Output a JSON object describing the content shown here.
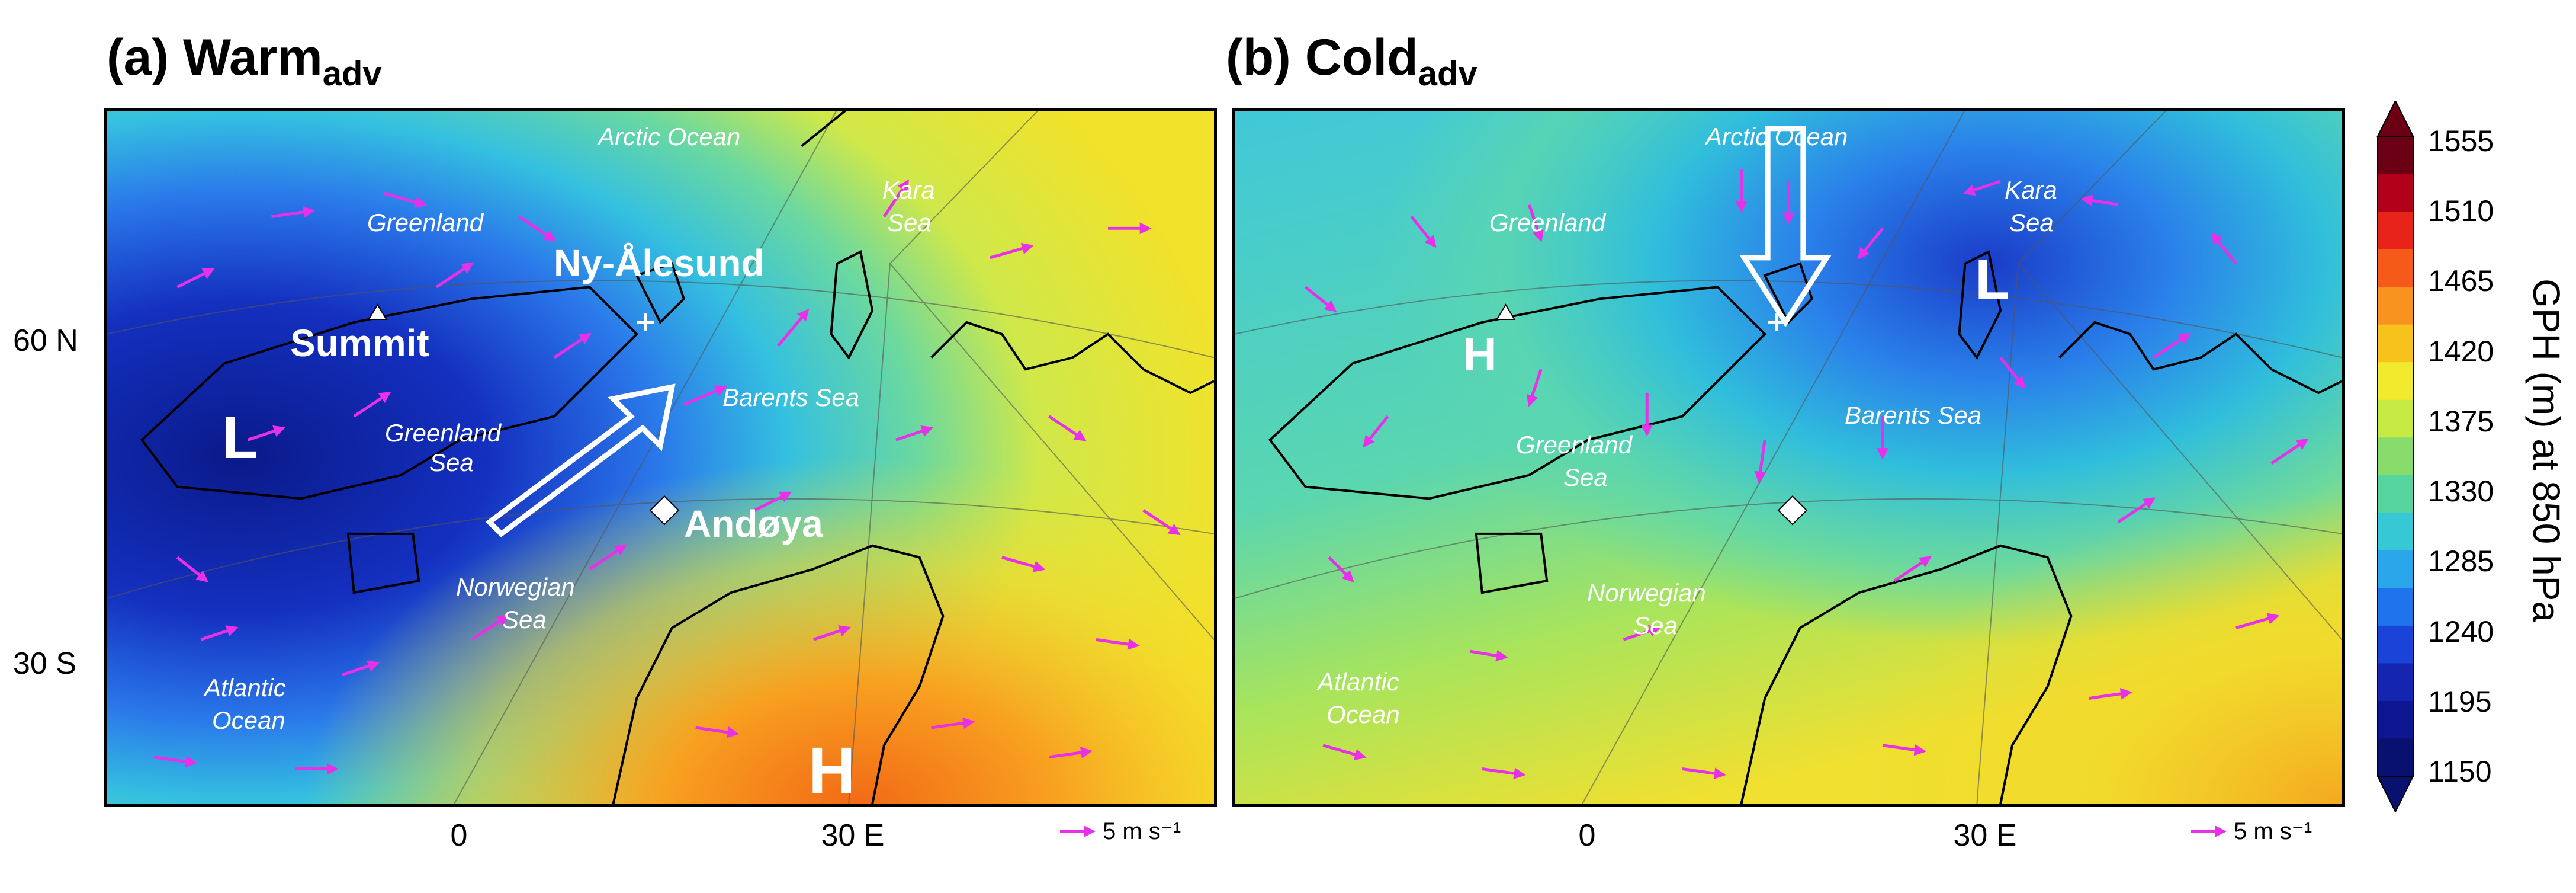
{
  "panel_a": {
    "title": "(a) Warm",
    "subscript": "adv",
    "place_labels": [
      "Arctic Ocean",
      "Greenland",
      "Greenland",
      "Sea",
      "Kara",
      "Sea",
      "Barents Sea",
      "Norwegian",
      "Sea",
      "Atlantic",
      "Ocean"
    ],
    "highlight_labels": [
      "Ny-Ålesund",
      "Summit",
      "Andøya"
    ],
    "pressure_centers": [
      "L",
      "H"
    ]
  },
  "panel_b": {
    "title": "(b) Cold",
    "subscript": "adv",
    "place_labels": [
      "Arctic Ocean",
      "Greenland",
      "Greenland",
      "Sea",
      "Kara",
      "Sea",
      "Barents Sea",
      "Norwegian",
      "Sea",
      "Atlantic",
      "Ocean"
    ],
    "pressure_centers": [
      "H",
      "L"
    ]
  },
  "axes": {
    "lat_labels": [
      "60 N",
      "30 S"
    ],
    "lon_labels_a": [
      "0",
      "30 E"
    ],
    "lon_labels_b": [
      "0",
      "30 E"
    ],
    "wind_reference": "5 m s⁻¹"
  },
  "colorbar": {
    "label": "GPH (m) at 850 hPa",
    "ticks": [
      "1555",
      "1510",
      "1465",
      "1420",
      "1375",
      "1330",
      "1285",
      "1240",
      "1195",
      "1150"
    ],
    "colors": [
      "#6b0015",
      "#b3001a",
      "#e8241a",
      "#f55a1a",
      "#f7931e",
      "#f8c21c",
      "#f2ea2c",
      "#c6ea42",
      "#88dc6c",
      "#55d4a0",
      "#36c8d4",
      "#2aa6ea",
      "#1f73ec",
      "#1a44d8",
      "#1426b0",
      "#0d1690",
      "#081070"
    ]
  },
  "colors": {
    "wind_arrow": "#e830e8",
    "coast": "#000000",
    "label_text": "#ffffff"
  }
}
